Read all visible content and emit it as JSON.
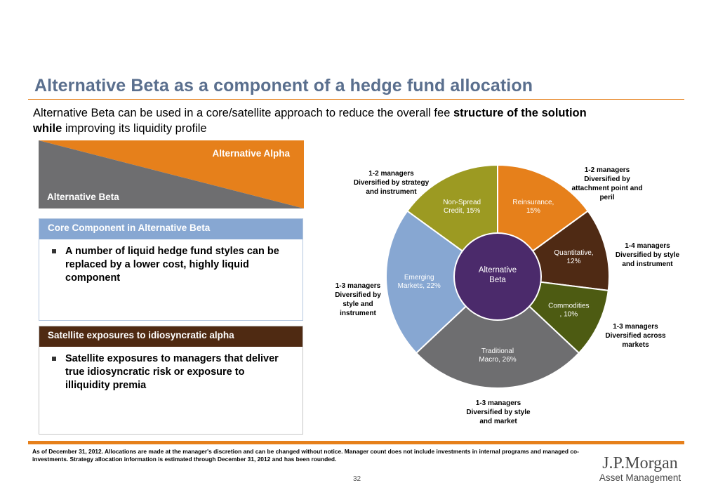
{
  "title": "Alternative Beta as a component of a hedge fund allocation",
  "subtitle": {
    "part1": "Alternative Beta can be used in a core/satellite  approach to reduce the overall fee ",
    "bold1": "structure of the solution",
    "bold2": "while",
    "part2": " improving its liquidity profile"
  },
  "wedge": {
    "alpha_label": "Alternative Alpha",
    "beta_label": "Alternative Beta",
    "colors": {
      "alpha": "#e6801b",
      "beta": "#6e6e70"
    }
  },
  "core_box": {
    "header": "Core Component in Alternative Beta",
    "bullet": "A number of liquid hedge fund styles can be replaced by a lower cost, highly liquid component"
  },
  "satellite_box": {
    "header": "Satellite exposures to idiosyncratic alpha",
    "bullet": "Satellite exposures to managers that deliver true idiosyncratic risk or exposure to illiquidity premia"
  },
  "chart_data": {
    "type": "pie",
    "center_label": [
      "Alternative",
      "Beta"
    ],
    "center_color": "#4b2a6b",
    "segments": [
      {
        "name": "Reinsurance",
        "value": 15,
        "label": [
          "Reinsurance,",
          "15%"
        ],
        "color": "#e6801b",
        "annotation": [
          "1-2 managers",
          "Diversified by",
          "attachment point and",
          "peril"
        ]
      },
      {
        "name": "Quantitative",
        "value": 12,
        "label": [
          "Quantitative,",
          "12%"
        ],
        "color": "#4f2a14",
        "annotation": [
          "1-4 managers",
          "Diversified by style",
          "and instrument"
        ]
      },
      {
        "name": "Commodities",
        "value": 10,
        "label": [
          "Commodities",
          ", 10%"
        ],
        "color": "#4d5b12",
        "annotation": [
          "1-3 managers",
          "Diversified across",
          "markets"
        ]
      },
      {
        "name": "Traditional Macro",
        "value": 26,
        "label": [
          "Traditional",
          "Macro, 26%"
        ],
        "color": "#6e6e70",
        "annotation": [
          "1-3 managers",
          "Diversified by style",
          "and market"
        ]
      },
      {
        "name": "Emerging Markets",
        "value": 22,
        "label": [
          "Emerging",
          "Markets, 22%"
        ],
        "color": "#87a7d2",
        "annotation": [
          "1-3 managers",
          "Diversified by",
          "style and",
          "instrument"
        ]
      },
      {
        "name": "Non-Spread Credit",
        "value": 15,
        "label": [
          "Non-Spread",
          "Credit, 15%"
        ],
        "color": "#9c9a22",
        "annotation": [
          "1-2 managers",
          "Diversified by strategy",
          "and instrument"
        ]
      }
    ]
  },
  "footnote": "As of  December 31, 2012. Allocations are made at the manager's discretion and can be changed without notice. Manager count does not include investments in internal programs and managed co-investments. Strategy allocation information is estimated through December 31, 2012 and has been rounded.",
  "page_number": "32",
  "logo": {
    "main": "J.P.Morgan",
    "sub": "Asset Management"
  }
}
